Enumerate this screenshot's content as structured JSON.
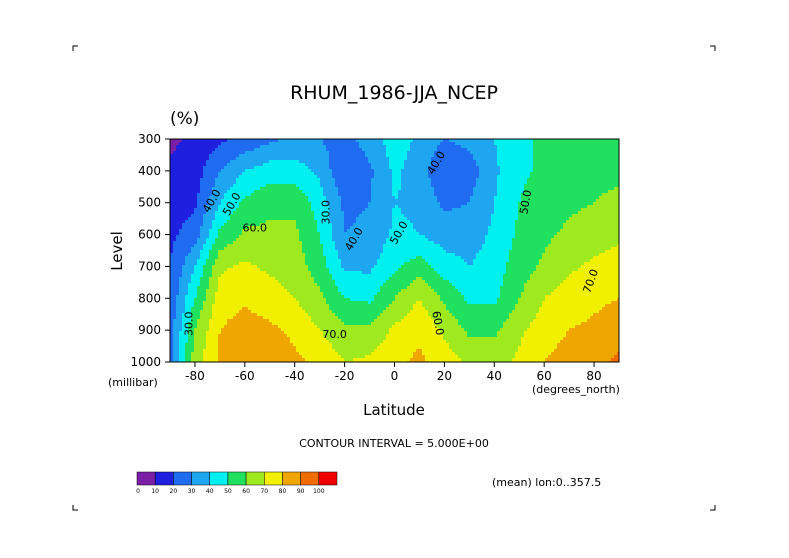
{
  "chart_data": {
    "type": "heatmap",
    "title": "RHUM_1986-JJA_NCEP",
    "units_label": "(%)",
    "xlabel": "Latitude",
    "ylabel": "Level",
    "x_unit_label": "(degrees_north)",
    "y_unit_label": "(millibar)",
    "xlim": [
      -90,
      90
    ],
    "ylim": [
      1000,
      300
    ],
    "x_ticks": [
      -80,
      -60,
      -40,
      -20,
      0,
      20,
      40,
      60,
      80
    ],
    "y_ticks": [
      300,
      400,
      500,
      600,
      700,
      800,
      900,
      1000
    ],
    "contour_interval_text": "CONTOUR INTERVAL = 5.000E+00",
    "mean_text": "(mean) lon:0..357.5",
    "legend": {
      "levels": [
        0,
        10,
        20,
        30,
        40,
        50,
        60,
        70,
        80,
        90,
        100
      ],
      "colors": [
        "#7a1fa6",
        "#1f1fe0",
        "#1f6cf0",
        "#1fa6f0",
        "#00f0f0",
        "#1fe05f",
        "#9fea1f",
        "#f0f000",
        "#f0a600",
        "#f06c00",
        "#f00000"
      ]
    },
    "grid_lat": [
      -90,
      -80,
      -70,
      -60,
      -50,
      -40,
      -30,
      -20,
      -10,
      0,
      10,
      20,
      30,
      40,
      50,
      60,
      70,
      80,
      90
    ],
    "grid_lev": [
      300,
      400,
      500,
      600,
      700,
      800,
      900,
      1000
    ],
    "values": [
      [
        8,
        12,
        18,
        22,
        28,
        32,
        30,
        26,
        35,
        45,
        38,
        30,
        33,
        40,
        48,
        52,
        55,
        58,
        58
      ],
      [
        12,
        15,
        30,
        40,
        45,
        45,
        38,
        20,
        28,
        42,
        35,
        20,
        25,
        38,
        48,
        52,
        55,
        58,
        58
      ],
      [
        15,
        18,
        40,
        52,
        58,
        58,
        45,
        28,
        30,
        40,
        38,
        28,
        30,
        40,
        50,
        55,
        58,
        60,
        62
      ],
      [
        18,
        25,
        52,
        62,
        62,
        62,
        50,
        30,
        32,
        42,
        40,
        35,
        35,
        42,
        52,
        58,
        62,
        65,
        68
      ],
      [
        20,
        40,
        68,
        72,
        68,
        65,
        55,
        38,
        38,
        48,
        55,
        45,
        40,
        45,
        55,
        62,
        68,
        72,
        75
      ],
      [
        22,
        50,
        75,
        78,
        75,
        70,
        62,
        50,
        48,
        60,
        70,
        58,
        48,
        48,
        60,
        70,
        75,
        78,
        80
      ],
      [
        25,
        60,
        80,
        85,
        82,
        78,
        70,
        62,
        62,
        72,
        78,
        68,
        58,
        58,
        68,
        75,
        80,
        82,
        85
      ],
      [
        28,
        65,
        82,
        86,
        86,
        82,
        78,
        70,
        72,
        78,
        82,
        75,
        68,
        66,
        72,
        80,
        85,
        88,
        92
      ]
    ],
    "contour_labels": [
      {
        "text": "30.0",
        "lat": -81,
        "lev": 880,
        "rot": -90
      },
      {
        "text": "40.0",
        "lat": -72,
        "lev": 500,
        "rot": -60
      },
      {
        "text": "50.0",
        "lat": -64,
        "lev": 510,
        "rot": -60
      },
      {
        "text": "60.0",
        "lat": -56,
        "lev": 590,
        "rot": 0
      },
      {
        "text": "30.0",
        "lat": -26,
        "lev": 530,
        "rot": -90
      },
      {
        "text": "40.0",
        "lat": -15,
        "lev": 620,
        "rot": -60
      },
      {
        "text": "50.0",
        "lat": 3,
        "lev": 600,
        "rot": -60
      },
      {
        "text": "40.0",
        "lat": 18,
        "lev": 380,
        "rot": -60
      },
      {
        "text": "50.0",
        "lat": 54,
        "lev": 500,
        "rot": -80
      },
      {
        "text": "70.0",
        "lat": 80,
        "lev": 750,
        "rot": -70
      },
      {
        "text": "60.0",
        "lat": 16,
        "lev": 880,
        "rot": 80
      },
      {
        "text": "70.0",
        "lat": -24,
        "lev": 925,
        "rot": 0
      }
    ]
  }
}
